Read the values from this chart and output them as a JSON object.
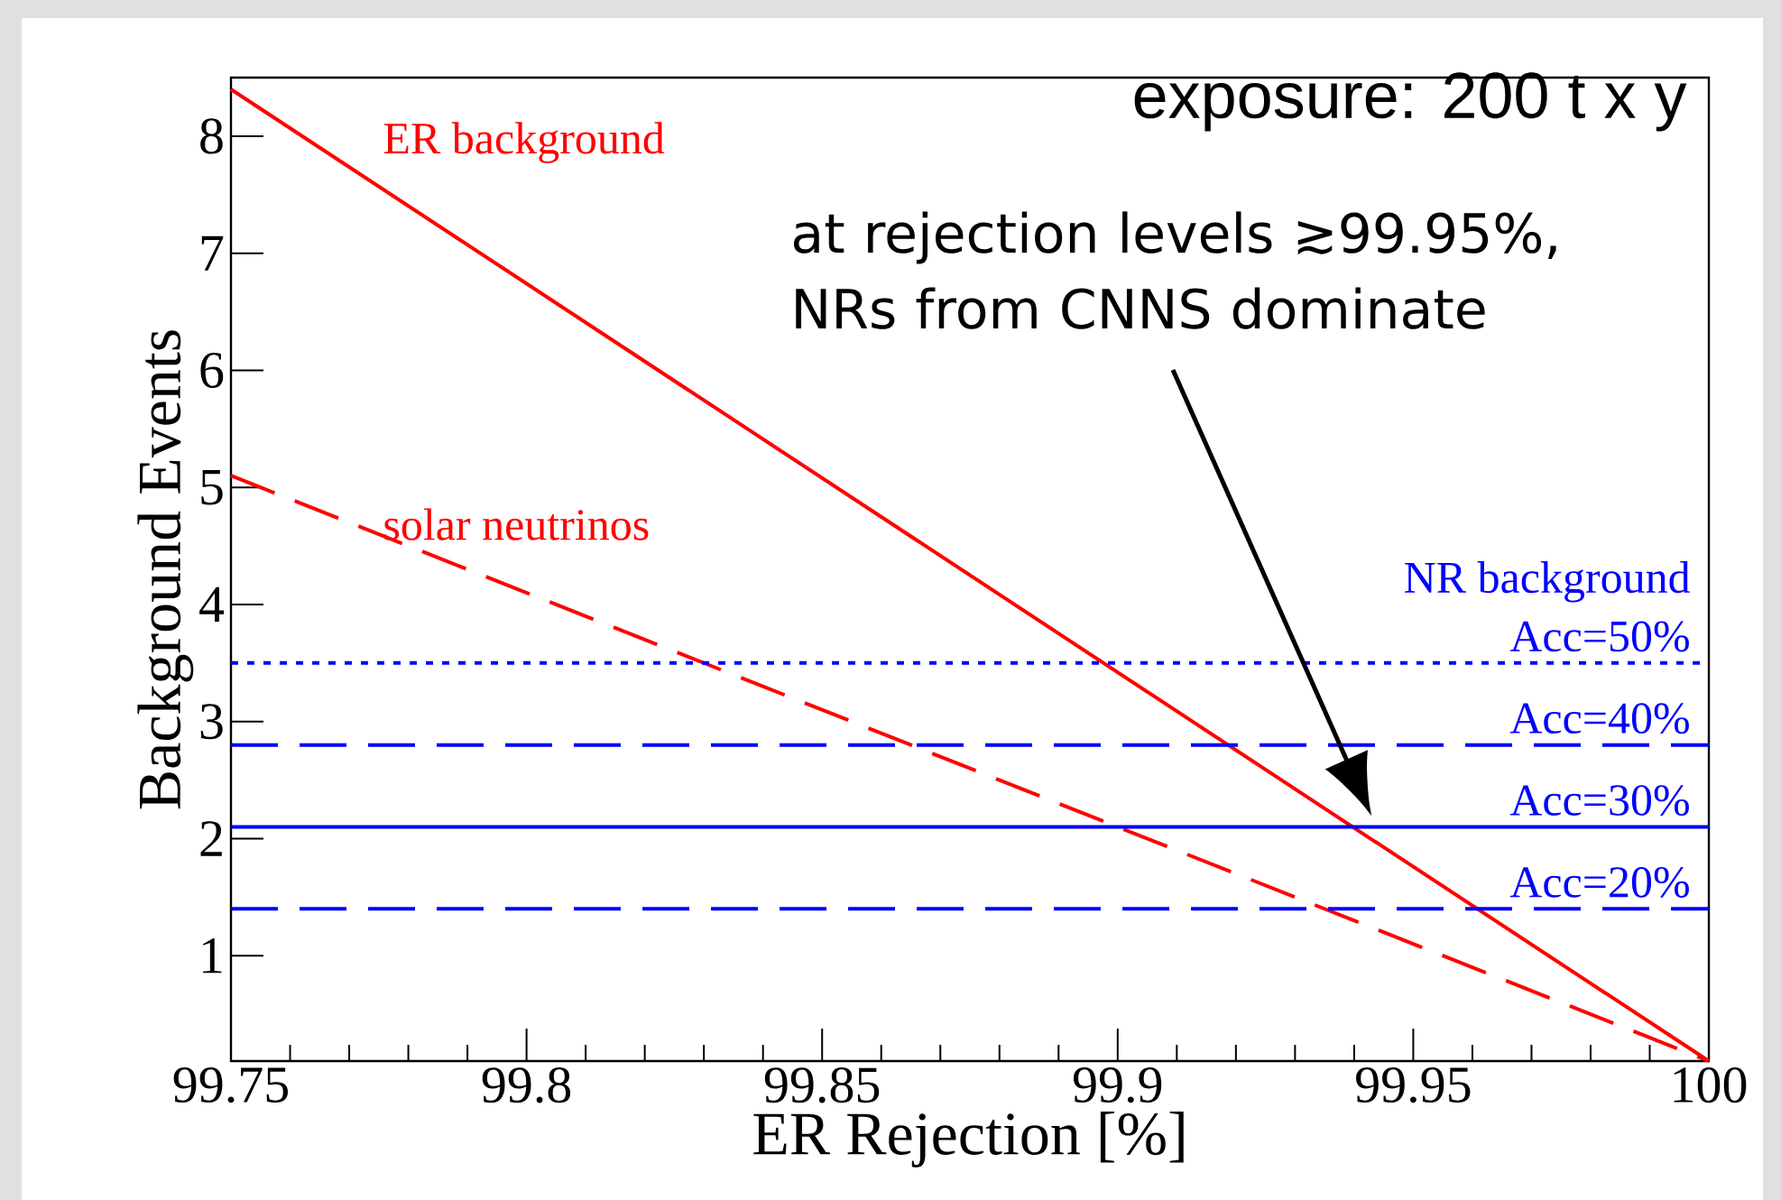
{
  "chart_data": {
    "type": "line",
    "xlabel": "ER Rejection [%]",
    "ylabel": "Background Events",
    "xlim": [
      99.75,
      100
    ],
    "ylim": [
      0.1,
      8.5
    ],
    "xticks": [
      99.75,
      99.8,
      99.85,
      99.9,
      99.95,
      100
    ],
    "yticks": [
      1,
      2,
      3,
      4,
      5,
      6,
      7,
      8
    ],
    "grid": false,
    "legend": false,
    "marker": "none",
    "x": [
      99.75,
      100
    ],
    "series": [
      {
        "name": "ER background",
        "color": "#ff0000",
        "line_style": "solid",
        "values": [
          8.4,
          0.1
        ]
      },
      {
        "name": "solar neutrinos",
        "color": "#ff0000",
        "line_style": "dashed",
        "values": [
          5.1,
          0.1
        ]
      },
      {
        "name": "Acc=50%",
        "color": "#0000ff",
        "line_style": "dotted",
        "values": [
          3.5,
          3.5
        ]
      },
      {
        "name": "Acc=40%",
        "color": "#0000ff",
        "line_style": "dashed",
        "values": [
          2.8,
          2.8
        ]
      },
      {
        "name": "Acc=30%",
        "color": "#0000ff",
        "line_style": "solid",
        "values": [
          2.1,
          2.1
        ]
      },
      {
        "name": "Acc=20%",
        "color": "#0000ff",
        "line_style": "dashed",
        "values": [
          1.4,
          1.4
        ]
      }
    ],
    "annotations": [
      "exposure: 200 t x y",
      "at rejection levels ≳99.95%, NRs from CNNS dominate",
      "NR background"
    ]
  }
}
